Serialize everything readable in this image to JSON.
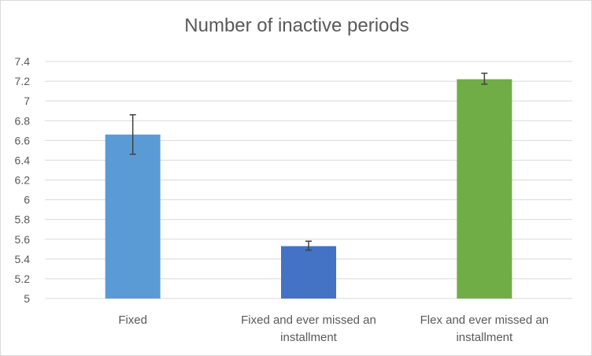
{
  "chart_data": {
    "type": "bar",
    "title": "Number of inactive periods",
    "xlabel": "",
    "ylabel": "",
    "ylim": [
      5,
      7.4
    ],
    "yticks": [
      5,
      5.2,
      5.4,
      5.6,
      5.8,
      6,
      6.2,
      6.4,
      6.6,
      6.8,
      7,
      7.2,
      7.4
    ],
    "ytick_labels": [
      "5",
      "5.2",
      "5.4",
      "5.6",
      "5.8",
      "6",
      "6.2",
      "6.4",
      "6.6",
      "6.8",
      "7",
      "7.2",
      "7.4"
    ],
    "grid": true,
    "legend": "none",
    "categories": [
      [
        "Fixed"
      ],
      [
        "Fixed and ever missed an",
        "installment"
      ],
      [
        "Flex and ever missed an",
        "installment"
      ]
    ],
    "values": [
      6.66,
      5.53,
      7.22
    ],
    "error_low": [
      6.46,
      5.49,
      7.17
    ],
    "error_high": [
      6.86,
      5.58,
      7.28
    ],
    "colors": [
      "#5b9bd5",
      "#4472c4",
      "#70ad47"
    ],
    "gridline_color": "#d9d9d9",
    "errorbar_color": "#404040"
  }
}
